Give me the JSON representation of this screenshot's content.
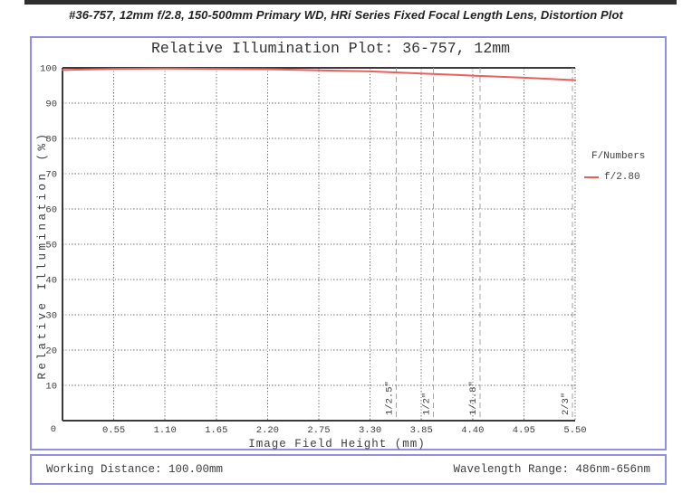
{
  "header": {
    "title": "#36-757, 12mm f/2.8, 150-500mm Primary WD, HRi Series Fixed Focal Length Lens, Distortion Plot"
  },
  "chart_data": {
    "type": "line",
    "title": "Relative Illumination Plot: 36-757, 12mm",
    "xlabel": "Image Field Height (mm)",
    "ylabel": "Relative Illumination (%)",
    "xlim": [
      0,
      5.5
    ],
    "ylim": [
      0,
      100
    ],
    "x_ticks": [
      0.55,
      1.1,
      1.65,
      2.2,
      2.75,
      3.3,
      3.85,
      4.4,
      4.95,
      5.5
    ],
    "x_tick_labels": [
      "0.55",
      "1.10",
      "1.65",
      "2.20",
      "2.75",
      "3.30",
      "3.85",
      "4.40",
      "4.95",
      "5.50"
    ],
    "origin_label": "0",
    "y_ticks": [
      10,
      20,
      30,
      40,
      50,
      60,
      70,
      80,
      90,
      100
    ],
    "grid": true,
    "legend": {
      "title": "F/Numbers",
      "position": "right-outside",
      "items": [
        {
          "label": "f/2.80",
          "color": "#e9605c"
        }
      ]
    },
    "series": [
      {
        "name": "f/2.80",
        "color": "#e9605c",
        "x": [
          0,
          0.55,
          1.1,
          1.65,
          2.2,
          2.75,
          3.3,
          3.85,
          4.4,
          4.95,
          5.5
        ],
        "values": [
          99.4,
          99.7,
          99.8,
          99.7,
          99.6,
          99.3,
          99.0,
          98.4,
          97.8,
          97.2,
          96.5
        ]
      }
    ],
    "sensor_format_markers": [
      {
        "label": "1/2.5\"",
        "x": 3.58
      },
      {
        "label": "1/2\"",
        "x": 3.98
      },
      {
        "label": "1/1.8\"",
        "x": 4.48
      },
      {
        "label": "2/3\"",
        "x": 5.47
      }
    ]
  },
  "footer": {
    "working_distance": "Working Distance: 100.00mm",
    "wavelength_range": "Wavelength Range: 486nm-656nm"
  },
  "colors": {
    "accent_border": "#8f8fe3",
    "curve": "#e9605c",
    "top_bar": "#2e2e2e",
    "frame": "#3a3a3a",
    "grid": "#6e6e6e",
    "marker_dash": "#a6a6a6",
    "text": "#3d3d3d"
  }
}
